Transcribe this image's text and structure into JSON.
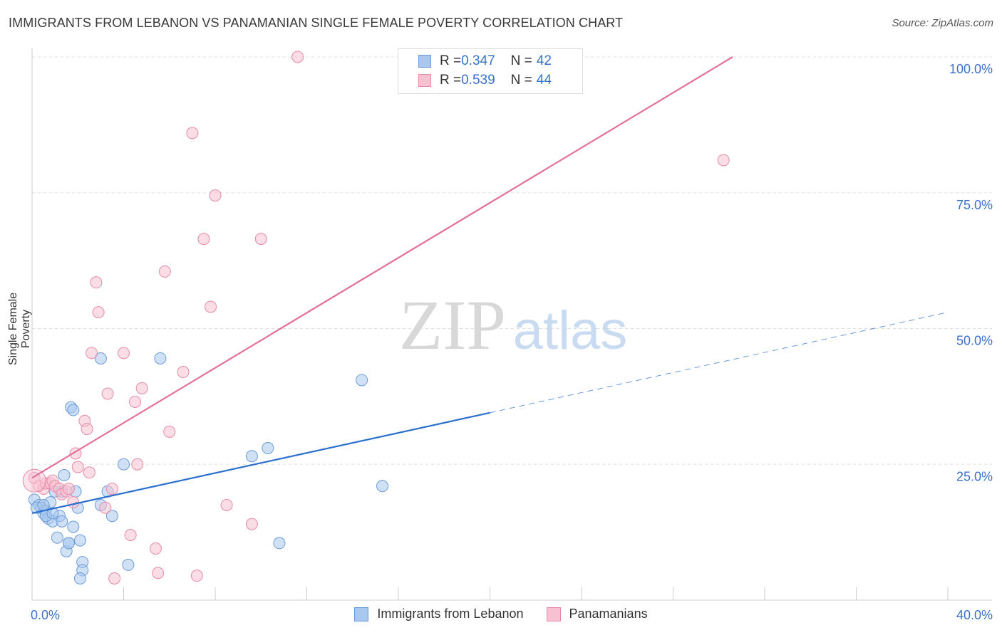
{
  "header": {
    "title": "IMMIGRANTS FROM LEBANON VS PANAMANIAN SINGLE FEMALE POVERTY CORRELATION CHART",
    "source": "Source: ZipAtlas.com"
  },
  "watermark": {
    "zip": "ZIP",
    "atlas": "atlas"
  },
  "legend_top": {
    "rows": [
      {
        "r_label": "R = ",
        "r_value": "0.347",
        "n_label": "N = ",
        "n_value": "42"
      },
      {
        "r_label": "R = ",
        "r_value": "0.539",
        "n_label": "N = ",
        "n_value": "44"
      }
    ]
  },
  "colors": {
    "blue_fill": "#a9c8ef",
    "blue_stroke": "#6a9bd8",
    "blue_line": "#2a6fcf",
    "pink_fill": "#f8c1d2",
    "pink_stroke": "#e88aa7",
    "pink_line": "#e0709a",
    "grid": "#dddddd",
    "tick_text": "#3a72c9"
  },
  "chart_data": {
    "type": "scatter",
    "title": "IMMIGRANTS FROM LEBANON VS PANAMANIAN SINGLE FEMALE POVERTY CORRELATION CHART",
    "xlabel": "",
    "ylabel": "Single Female Poverty",
    "xlim": [
      0,
      40
    ],
    "ylim": [
      0,
      102
    ],
    "x_tick_labels": [
      {
        "value": 0,
        "label": "0.0%"
      },
      {
        "value": 40,
        "label": "40.0%"
      }
    ],
    "y_tick_labels": [
      {
        "value": 25,
        "label": "25.0%"
      },
      {
        "value": 50,
        "label": "50.0%"
      },
      {
        "value": 75,
        "label": "75.0%"
      },
      {
        "value": 100,
        "label": "100.0%"
      }
    ],
    "x_minor_ticks": [
      4,
      8,
      12,
      16,
      20,
      24,
      28,
      32,
      36,
      40
    ],
    "y_grid": [
      25,
      50,
      75,
      100
    ],
    "series": [
      {
        "name": "Immigrants from Lebanon",
        "color": "blue",
        "R": 0.347,
        "N": 42,
        "trend": {
          "x0": 0,
          "y0": 16,
          "x1": 20,
          "y1": 34.5,
          "dash_to_x": 40,
          "dash_to_y": 53
        },
        "points": [
          [
            0.1,
            18.5
          ],
          [
            0.3,
            17.5
          ],
          [
            0.4,
            17
          ],
          [
            0.5,
            16
          ],
          [
            0.6,
            16.5
          ],
          [
            0.7,
            15
          ],
          [
            0.8,
            18
          ],
          [
            0.9,
            14.5
          ],
          [
            1.0,
            20
          ],
          [
            1.1,
            11.5
          ],
          [
            1.2,
            15.5
          ],
          [
            1.3,
            14.5
          ],
          [
            1.4,
            23
          ],
          [
            1.5,
            9
          ],
          [
            1.6,
            10.5
          ],
          [
            1.7,
            35.5
          ],
          [
            1.8,
            35
          ],
          [
            1.8,
            13.5
          ],
          [
            1.9,
            20
          ],
          [
            2.0,
            17
          ],
          [
            2.1,
            11
          ],
          [
            2.2,
            7
          ],
          [
            2.2,
            5.5
          ],
          [
            2.1,
            4
          ],
          [
            3.0,
            17.5
          ],
          [
            3.3,
            20
          ],
          [
            3.5,
            15.5
          ],
          [
            4.0,
            25
          ],
          [
            4.2,
            6.5
          ],
          [
            5.6,
            44.5
          ],
          [
            3.0,
            44.5
          ],
          [
            9.6,
            26.5
          ],
          [
            10.3,
            28
          ],
          [
            10.8,
            10.5
          ],
          [
            14.4,
            40.5
          ],
          [
            15.3,
            21
          ],
          [
            0.2,
            17
          ],
          [
            0.6,
            15.5
          ],
          [
            1.3,
            20
          ],
          [
            0.9,
            16
          ],
          [
            0.5,
            17.5
          ],
          [
            1.6,
            10.5
          ]
        ]
      },
      {
        "name": "Panamanians",
        "color": "pink",
        "R": 0.539,
        "N": 44,
        "trend": {
          "x0": 0,
          "y0": 22.5,
          "x1": 30.6,
          "y1": 100
        },
        "points": [
          [
            0.1,
            22.5
          ],
          [
            0.3,
            21
          ],
          [
            0.5,
            20.5
          ],
          [
            0.6,
            21.5
          ],
          [
            0.8,
            21.5
          ],
          [
            0.9,
            22
          ],
          [
            1.0,
            21
          ],
          [
            1.2,
            20.5
          ],
          [
            1.3,
            19.5
          ],
          [
            1.5,
            20
          ],
          [
            1.6,
            20.5
          ],
          [
            1.8,
            18
          ],
          [
            1.9,
            27
          ],
          [
            2.0,
            24.5
          ],
          [
            2.3,
            33
          ],
          [
            2.4,
            31.5
          ],
          [
            2.5,
            23.5
          ],
          [
            2.8,
            58.5
          ],
          [
            2.9,
            53
          ],
          [
            2.6,
            45.5
          ],
          [
            3.2,
            17
          ],
          [
            3.3,
            38
          ],
          [
            3.5,
            20.5
          ],
          [
            4.0,
            45.5
          ],
          [
            4.3,
            12
          ],
          [
            4.5,
            36.5
          ],
          [
            4.6,
            25
          ],
          [
            4.8,
            39
          ],
          [
            5.4,
            9.5
          ],
          [
            5.8,
            60.5
          ],
          [
            6.0,
            31
          ],
          [
            5.5,
            5
          ],
          [
            6.6,
            42
          ],
          [
            7.0,
            86
          ],
          [
            7.2,
            4.5
          ],
          [
            7.5,
            66.5
          ],
          [
            7.8,
            54
          ],
          [
            8.0,
            74.5
          ],
          [
            8.5,
            17.5
          ],
          [
            9.6,
            14
          ],
          [
            10.0,
            66.5
          ],
          [
            11.6,
            100
          ],
          [
            30.2,
            81
          ],
          [
            3.6,
            4
          ]
        ]
      }
    ]
  },
  "legend_bottom": {
    "items": [
      {
        "label": "Immigrants from Lebanon"
      },
      {
        "label": "Panamanians"
      }
    ]
  }
}
